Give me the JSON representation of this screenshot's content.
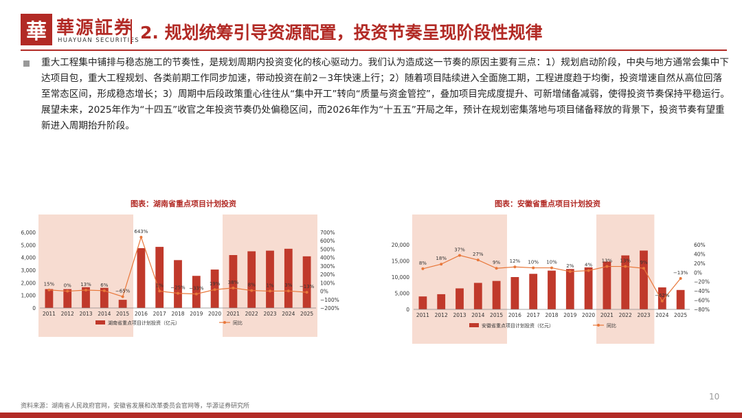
{
  "header": {
    "logo_mark": "華",
    "logo_cn": "華源証券",
    "logo_en": "HUAYUAN SECURITIES",
    "title": "2. 规划统筹引导资源配置，投资节奏呈现阶段性规律"
  },
  "body_text": "重大工程集中铺排与稳态施工的节奏性，是规划周期内投资变化的核心驱动力。我们认为造成这一节奏的原因主要有三点：1）规划启动阶段，中央与地方通常会集中下达项目包，重大工程规划、各类前期工作同步加速，带动投资在前2－3年快速上行；2）随着项目陆续进入全面施工期，工程进度趋于均衡，投资增速自然从高位回落至常态区间，形成稳态增长；3）周期中后段政策重心往往从“集中开工”转向“质量与资金管控”，叠加项目完成度提升、可新增储备减弱，使得投资节奏保持平稳运行。展望未来，2025年作为“十四五”收官之年投资节奏仍处偏稳区间，而2026年作为“十五五”开局之年，预计在规划密集落地与项目储备释放的背景下，投资节奏有望重新进入周期抬升阶段。",
  "footer": {
    "source": "资料来源：湖南省人民政府官网，安徽省发展和改革委员会官网等，华源证券研究所",
    "page_number": "10"
  },
  "colors": {
    "accent": "#b22a25",
    "bar": "#c0392b",
    "line": "#e8773a",
    "highlight": "#f7dcd1"
  },
  "chart_data": [
    {
      "type": "bar",
      "title": "图表：湖南省重点项目计划投资",
      "categories": [
        "2011",
        "2012",
        "2013",
        "2014",
        "2015",
        "2016",
        "2017",
        "2018",
        "2019",
        "2020",
        "2021",
        "2022",
        "2023",
        "2024",
        "2025"
      ],
      "series": [
        {
          "name": "湖南省重点项目计划投资（亿元）",
          "type": "bar",
          "axis": "left",
          "values": [
            1500,
            1500,
            1650,
            1600,
            650,
            4750,
            4850,
            3800,
            2550,
            3050,
            4200,
            4500,
            4550,
            4700,
            4100
          ]
        },
        {
          "name": "同比",
          "type": "line",
          "axis": "right",
          "values": [
            15,
            0,
            13,
            6,
            -65,
            643,
            1,
            -25,
            -33,
            19,
            38,
            8,
            1,
            3,
            -13
          ],
          "labels": [
            "15%",
            "0%",
            "13%",
            "6%",
            "−65%",
            "643%",
            "1%",
            "−25%",
            "−33%",
            "19%",
            "38%",
            "8%",
            "1%",
            "3%",
            "−13%"
          ]
        }
      ],
      "y_left": {
        "min": 0,
        "max": 6000,
        "ticks": [
          "0",
          "1,000",
          "2,000",
          "3,000",
          "4,000",
          "5,000",
          "6,000"
        ]
      },
      "y_right": {
        "min": -200,
        "max": 700,
        "ticks": [
          "−200%",
          "−100%",
          "0%",
          "100%",
          "200%",
          "300%",
          "400%",
          "500%",
          "600%",
          "700%"
        ]
      },
      "highlight_spans": [
        [
          0,
          4
        ],
        [
          10,
          14
        ]
      ],
      "legend_position": "bottom"
    },
    {
      "type": "bar",
      "title": "图表：安徽省重点项目计划投资",
      "categories": [
        "2011",
        "2012",
        "2013",
        "2014",
        "2015",
        "2016",
        "2017",
        "2018",
        "2019",
        "2020",
        "2021",
        "2022",
        "2023",
        "2024",
        "2025"
      ],
      "series": [
        {
          "name": "安徽省重点项目计划投资（亿元）",
          "type": "bar",
          "axis": "left",
          "values": [
            4000,
            4700,
            6500,
            8200,
            8800,
            10000,
            11000,
            12000,
            12500,
            13000,
            14800,
            16700,
            18200,
            6800,
            6000
          ]
        },
        {
          "name": "同比",
          "type": "line",
          "axis": "right",
          "values": [
            8,
            18,
            37,
            27,
            9,
            12,
            10,
            10,
            2,
            4,
            13,
            13,
            9,
            -62,
            -13
          ],
          "labels": [
            "8%",
            "18%",
            "37%",
            "27%",
            "9%",
            "12%",
            "10%",
            "10%",
            "2%",
            "4%",
            "13%",
            "13%",
            "9%",
            "−62%",
            "−13%"
          ]
        }
      ],
      "y_left": {
        "min": 0,
        "max": 20000,
        "ticks": [
          "0",
          "5,000",
          "10,000",
          "15,000",
          "20,000"
        ]
      },
      "y_right": {
        "min": -80,
        "max": 60,
        "ticks": [
          "−80%",
          "−60%",
          "−40%",
          "−20%",
          "0%",
          "20%",
          "40%",
          "60%"
        ]
      },
      "highlight_spans": [
        [
          0,
          4
        ],
        [
          10,
          12
        ]
      ],
      "legend_position": "bottom"
    }
  ]
}
